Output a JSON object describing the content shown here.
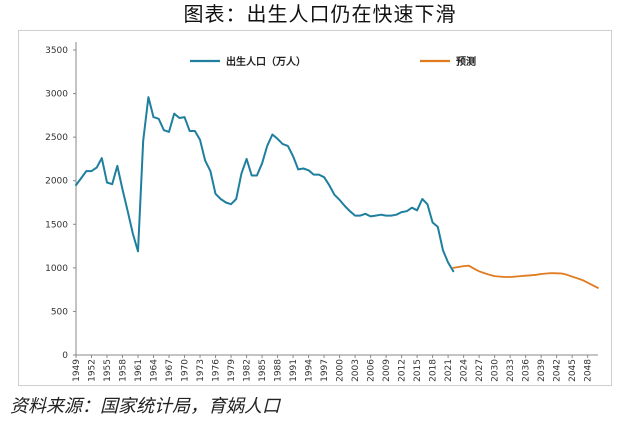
{
  "header": {
    "title": "图表：出生人口仍在快速下滑"
  },
  "footer": {
    "source": "资料来源：国家统计局，育娲人口"
  },
  "colors": {
    "actual": "#1f7f9e",
    "forecast": "#e07b20",
    "axis": "#888888"
  },
  "chart_data": {
    "type": "line",
    "title": "图表：出生人口仍在快速下滑",
    "xlabel": "",
    "ylabel": "",
    "ylim": [
      0,
      3500
    ],
    "yticks": [
      0,
      500,
      1000,
      1500,
      2000,
      2500,
      3000,
      3500
    ],
    "xtick_labels": [
      "1949",
      "1952",
      "1955",
      "1958",
      "1961",
      "1964",
      "1967",
      "1970",
      "1973",
      "1976",
      "1979",
      "1982",
      "1985",
      "1988",
      "1991",
      "1994",
      "1997",
      "2000",
      "2003",
      "2006",
      "2009",
      "2012",
      "2015",
      "2018",
      "2021",
      "2024",
      "2027",
      "2030",
      "2033",
      "2036",
      "2039",
      "2042",
      "2045",
      "2048"
    ],
    "xlim": [
      1949,
      2050
    ],
    "grid": false,
    "legend_position": "top",
    "series": [
      {
        "name": "出生人口（万人）",
        "x": [
          1949,
          1950,
          1951,
          1952,
          1953,
          1954,
          1955,
          1956,
          1957,
          1958,
          1959,
          1960,
          1961,
          1962,
          1963,
          1964,
          1965,
          1966,
          1967,
          1968,
          1969,
          1970,
          1971,
          1972,
          1973,
          1974,
          1975,
          1976,
          1977,
          1978,
          1979,
          1980,
          1981,
          1982,
          1983,
          1984,
          1985,
          1986,
          1987,
          1988,
          1989,
          1990,
          1991,
          1992,
          1993,
          1994,
          1995,
          1996,
          1997,
          1998,
          1999,
          2000,
          2001,
          2002,
          2003,
          2004,
          2005,
          2006,
          2007,
          2008,
          2009,
          2010,
          2011,
          2012,
          2013,
          2014,
          2015,
          2016,
          2017,
          2018,
          2019,
          2020,
          2021,
          2022
        ],
        "values": [
          1950,
          2030,
          2110,
          2110,
          2150,
          2260,
          1980,
          1960,
          2170,
          1900,
          1650,
          1390,
          1190,
          2460,
          2960,
          2730,
          2710,
          2580,
          2560,
          2770,
          2720,
          2730,
          2570,
          2570,
          2470,
          2230,
          2110,
          1850,
          1790,
          1750,
          1730,
          1790,
          2080,
          2250,
          2060,
          2060,
          2200,
          2400,
          2530,
          2480,
          2420,
          2400,
          2280,
          2130,
          2140,
          2120,
          2070,
          2070,
          2040,
          1950,
          1840,
          1780,
          1710,
          1650,
          1600,
          1600,
          1620,
          1590,
          1600,
          1610,
          1600,
          1600,
          1610,
          1640,
          1650,
          1690,
          1660,
          1790,
          1730,
          1520,
          1470,
          1200,
          1062,
          960
        ]
      },
      {
        "name": "预测",
        "x": [
          2022,
          2023,
          2024,
          2025,
          2026,
          2027,
          2028,
          2029,
          2030,
          2031,
          2032,
          2033,
          2034,
          2035,
          2036,
          2037,
          2038,
          2039,
          2040,
          2041,
          2042,
          2043,
          2044,
          2045,
          2046,
          2047,
          2048,
          2049,
          2050
        ],
        "values": [
          1000,
          1010,
          1020,
          1025,
          990,
          960,
          940,
          920,
          905,
          900,
          895,
          895,
          900,
          905,
          910,
          915,
          920,
          930,
          935,
          940,
          938,
          935,
          920,
          900,
          880,
          860,
          830,
          800,
          770
        ]
      }
    ]
  }
}
